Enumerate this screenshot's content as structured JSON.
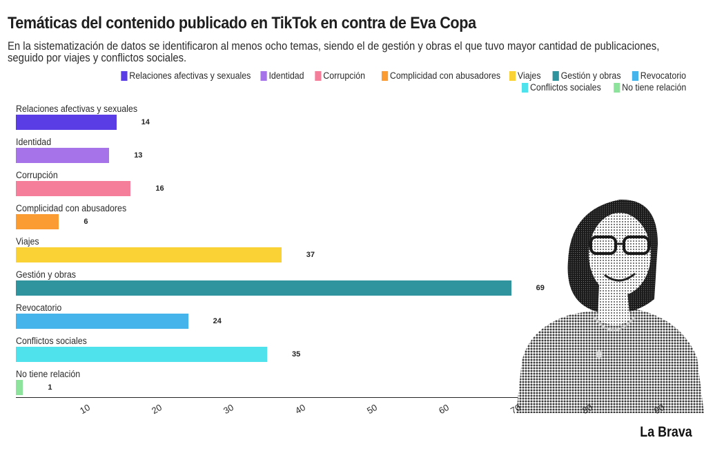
{
  "header": {
    "title": "Temáticas del contenido publicado en TikTok en contra de Eva Copa",
    "subtitle": "En la sistematización de datos se identificaron al menos ocho temas, siendo el de gestión y obras el que tuvo mayor cantidad de publicaciones, seguido por viajes y conflictos sociales."
  },
  "brand": "La Brava",
  "photo": {
    "icon": "portrait-halftone-icon"
  },
  "chart_data": {
    "type": "bar",
    "orientation": "horizontal",
    "title": "Temáticas del contenido publicado en TikTok en contra de Eva Copa",
    "subtitle": "En la sistematización de datos se identificaron al menos ocho temas, siendo el de gestión y obras el que tuvo mayor cantidad de publicaciones, seguido por viajes y conflictos sociales.",
    "xlabel": "",
    "ylabel": "",
    "xlim": [
      0,
      95
    ],
    "xticks": [
      10,
      20,
      30,
      40,
      50,
      60,
      70,
      80,
      90
    ],
    "grid": false,
    "legend_position": "top-right",
    "categories": [
      "Relaciones afectivas y sexuales",
      "Identidad",
      "Corrupción",
      "Complicidad con abusadores",
      "Viajes",
      "Gestión y obras",
      "Revocatorio",
      "Conflictos sociales",
      "No tiene relación"
    ],
    "values": [
      14,
      13,
      16,
      6,
      37,
      69,
      24,
      35,
      1
    ],
    "colors": [
      "#5b3de6",
      "#a674e8",
      "#f57f9b",
      "#fb9c32",
      "#fbd235",
      "#2f949d",
      "#45b4ea",
      "#4fe2ec",
      "#8ee39c"
    ]
  }
}
